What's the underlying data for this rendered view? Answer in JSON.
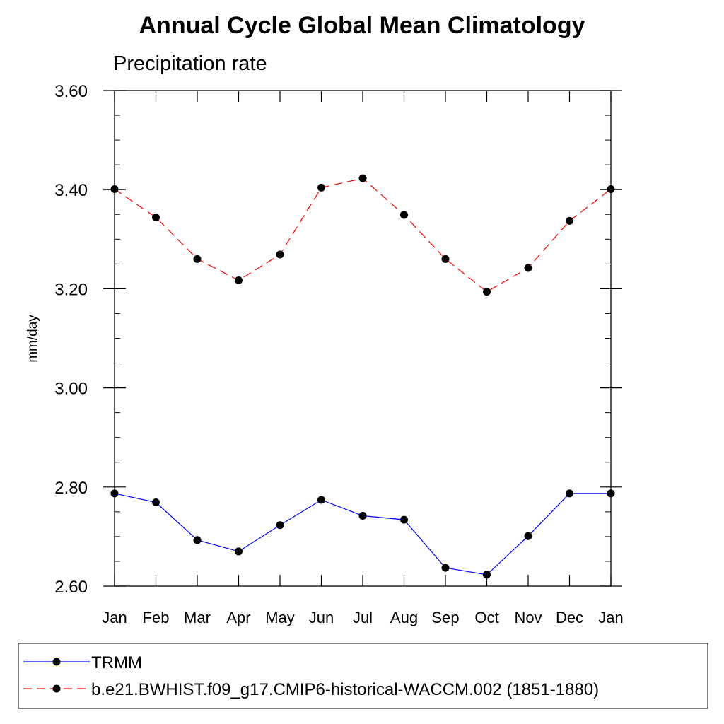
{
  "chart_data": {
    "type": "line",
    "title": "Annual Cycle Global Mean Climatology",
    "subtitle": "Precipitation rate",
    "ylabel": "mm/day",
    "xlabel": "",
    "categories": [
      "Jan",
      "Feb",
      "Mar",
      "Apr",
      "May",
      "Jun",
      "Jul",
      "Aug",
      "Sep",
      "Oct",
      "Nov",
      "Dec",
      "Jan"
    ],
    "ylim": [
      2.6,
      3.6
    ],
    "yticks": [
      "2.60",
      "2.80",
      "3.00",
      "3.20",
      "3.40",
      "3.60"
    ],
    "ytick_values": [
      2.6,
      2.8,
      3.0,
      3.2,
      3.4,
      3.6
    ],
    "grid": false,
    "legend_position": "bottom",
    "series": [
      {
        "name": "TRMM",
        "color": "#0000ff",
        "line_style": "solid",
        "marker": "filled-circle",
        "values": [
          2.787,
          2.769,
          2.693,
          2.67,
          2.723,
          2.774,
          2.742,
          2.734,
          2.637,
          2.623,
          2.701,
          2.787,
          2.787
        ]
      },
      {
        "name": "b.e21.BWHIST.f09_g17.CMIP6-historical-WACCM.002 (1851-1880)",
        "color": "#ff0000",
        "line_style": "dashed",
        "marker": "filled-circle",
        "values": [
          3.401,
          3.344,
          3.26,
          3.217,
          3.269,
          3.404,
          3.423,
          3.349,
          3.26,
          3.194,
          3.242,
          3.337,
          3.401
        ]
      }
    ]
  }
}
